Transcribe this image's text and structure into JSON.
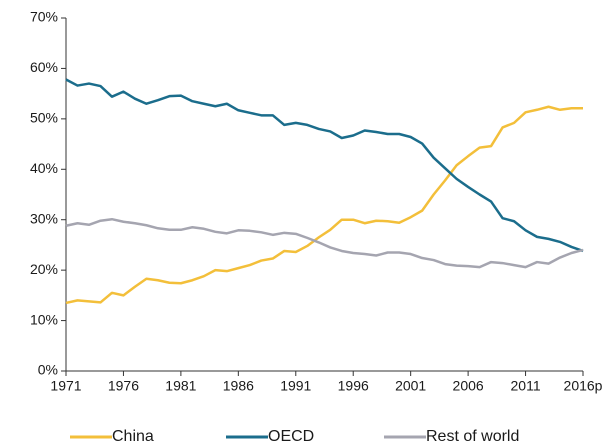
{
  "chart_data": {
    "type": "line",
    "categories": [
      "1971",
      null,
      null,
      null,
      null,
      "1976",
      null,
      null,
      null,
      null,
      "1981",
      null,
      null,
      null,
      null,
      "1986",
      null,
      null,
      null,
      null,
      "1991",
      null,
      null,
      null,
      null,
      "1996",
      null,
      null,
      null,
      null,
      "2001",
      null,
      null,
      null,
      null,
      "2006",
      null,
      null,
      null,
      null,
      "2011",
      null,
      null,
      null,
      null,
      "2016p"
    ],
    "series": [
      {
        "name": "China",
        "color": "#f3bf3a",
        "values": [
          13.5,
          14,
          13.8,
          13.6,
          15.5,
          15,
          16.7,
          18.3,
          18,
          17.5,
          17.4,
          18,
          18.8,
          20,
          19.8,
          20.4,
          21,
          21.9,
          22.3,
          23.8,
          23.6,
          24.8,
          26.5,
          28,
          30,
          30,
          29.3,
          29.8,
          29.7,
          29.4,
          30.5,
          31.8,
          35,
          37.8,
          40.8,
          42.6,
          44.3,
          44.6,
          48.3,
          49.2,
          51.3,
          51.8,
          52.4,
          51.8,
          52.1,
          52.1
        ]
      },
      {
        "name": "OECD",
        "color": "#1b6d8c",
        "values": [
          57.8,
          56.6,
          57,
          56.5,
          54.4,
          55.4,
          54,
          53,
          53.7,
          54.5,
          54.6,
          53.5,
          53,
          52.5,
          53,
          51.7,
          51.2,
          50.7,
          50.7,
          48.8,
          49.2,
          48.8,
          48,
          47.5,
          46.2,
          46.7,
          47.7,
          47.4,
          47,
          47,
          46.4,
          45.1,
          42.3,
          40.2,
          38.1,
          36.5,
          35,
          33.6,
          30.3,
          29.7,
          27.9,
          26.6,
          26.2,
          25.6,
          24.6,
          23.8
        ]
      },
      {
        "name": "Rest of world",
        "color": "#a5a5b0",
        "values": [
          28.8,
          29.3,
          29,
          29.8,
          30.1,
          29.6,
          29.3,
          28.9,
          28.3,
          28,
          28,
          28.5,
          28.2,
          27.6,
          27.3,
          27.9,
          27.8,
          27.5,
          27,
          27.4,
          27.2,
          26.4,
          25.5,
          24.5,
          23.8,
          23.4,
          23.2,
          22.9,
          23.5,
          23.5,
          23.2,
          22.4,
          22,
          21.2,
          20.9,
          20.8,
          20.6,
          21.6,
          21.4,
          21,
          20.6,
          21.6,
          21.3,
          22.5,
          23.4,
          24
        ]
      }
    ],
    "ylim": [
      0,
      70
    ],
    "yticks": [
      {
        "value": 0,
        "label": "0%"
      },
      {
        "value": 10,
        "label": "10%"
      },
      {
        "value": 20,
        "label": "20%"
      },
      {
        "value": 30,
        "label": "30%"
      },
      {
        "value": 40,
        "label": "40%"
      },
      {
        "value": 50,
        "label": "50%"
      },
      {
        "value": 60,
        "label": "60%"
      },
      {
        "value": 70,
        "label": "70%"
      }
    ],
    "grid": false,
    "legend": "bottom"
  }
}
